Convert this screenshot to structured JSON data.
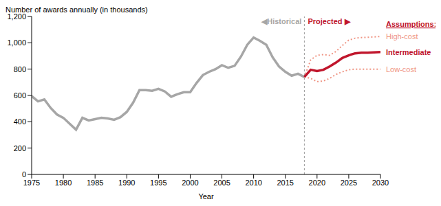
{
  "chart_data": {
    "type": "line",
    "y_label": "Number of awards annually (in thousands)",
    "x_label": "Year",
    "annotations": [
      "◀Historical",
      "Projected ▶"
    ],
    "legend_title": "Assumptions:",
    "projection_start": 2018,
    "xlim": [
      1975,
      2030
    ],
    "xticks": [
      1975,
      1980,
      1985,
      1990,
      1995,
      2000,
      2005,
      2010,
      2015,
      2020,
      2025,
      2030
    ],
    "ylim": [
      0,
      1200
    ],
    "yticks": [
      0,
      200,
      400,
      600,
      800,
      {
        "value": 1000,
        "label": "1,000"
      },
      {
        "value": 1200,
        "label": "1,200"
      }
    ],
    "grid": false,
    "x": [
      1975,
      1976,
      1977,
      1978,
      1979,
      1980,
      1981,
      1982,
      1983,
      1984,
      1985,
      1986,
      1987,
      1988,
      1989,
      1990,
      1991,
      1992,
      1993,
      1994,
      1995,
      1996,
      1997,
      1998,
      1999,
      2000,
      2001,
      2002,
      2003,
      2004,
      2005,
      2006,
      2007,
      2008,
      2009,
      2010,
      2011,
      2012,
      2013,
      2014,
      2015,
      2016,
      2017,
      2018,
      2019,
      2020,
      2021,
      2022,
      2023,
      2024,
      2025,
      2026,
      2027,
      2028,
      2029,
      2030
    ],
    "series": [
      {
        "name": "High-cost",
        "color": "#ef9483",
        "line_style": "dotted",
        "values": [
          null,
          null,
          null,
          null,
          null,
          null,
          null,
          null,
          null,
          null,
          null,
          null,
          null,
          null,
          null,
          null,
          null,
          null,
          null,
          null,
          null,
          null,
          null,
          null,
          null,
          null,
          null,
          null,
          null,
          null,
          null,
          null,
          null,
          null,
          null,
          null,
          null,
          null,
          null,
          null,
          null,
          null,
          null,
          740,
          870,
          905,
          910,
          905,
          935,
          980,
          1020,
          1035,
          1040,
          1042,
          1045,
          1048
        ]
      },
      {
        "name": "Low-cost",
        "color": "#ef9483",
        "line_style": "dotted",
        "values": [
          null,
          null,
          null,
          null,
          null,
          null,
          null,
          null,
          null,
          null,
          null,
          null,
          null,
          null,
          null,
          null,
          null,
          null,
          null,
          null,
          null,
          null,
          null,
          null,
          null,
          null,
          null,
          null,
          null,
          null,
          null,
          null,
          null,
          null,
          null,
          null,
          null,
          null,
          null,
          null,
          null,
          null,
          null,
          740,
          730,
          705,
          710,
          730,
          760,
          780,
          795,
          800,
          800,
          800,
          800,
          800
        ]
      },
      {
        "color": "#a6a6a6",
        "line_style": "solid",
        "values": [
          595,
          555,
          570,
          505,
          455,
          430,
          385,
          340,
          430,
          410,
          420,
          430,
          425,
          415,
          435,
          475,
          545,
          640,
          640,
          635,
          650,
          630,
          590,
          610,
          625,
          625,
          695,
          755,
          780,
          800,
          830,
          810,
          825,
          895,
          985,
          1040,
          1015,
          985,
          890,
          820,
          780,
          750,
          765,
          740,
          null,
          null,
          null,
          null,
          null,
          null,
          null,
          null,
          null,
          null,
          null,
          null
        ]
      },
      {
        "name": "Intermediate",
        "color": "#c0162c",
        "line_style": "solid",
        "values": [
          null,
          null,
          null,
          null,
          null,
          null,
          null,
          null,
          null,
          null,
          null,
          null,
          null,
          null,
          null,
          null,
          null,
          null,
          null,
          null,
          null,
          null,
          null,
          null,
          null,
          null,
          null,
          null,
          null,
          null,
          null,
          null,
          null,
          null,
          null,
          null,
          null,
          null,
          null,
          null,
          null,
          null,
          null,
          740,
          795,
          785,
          795,
          820,
          850,
          885,
          905,
          920,
          925,
          925,
          928,
          930
        ]
      }
    ]
  }
}
